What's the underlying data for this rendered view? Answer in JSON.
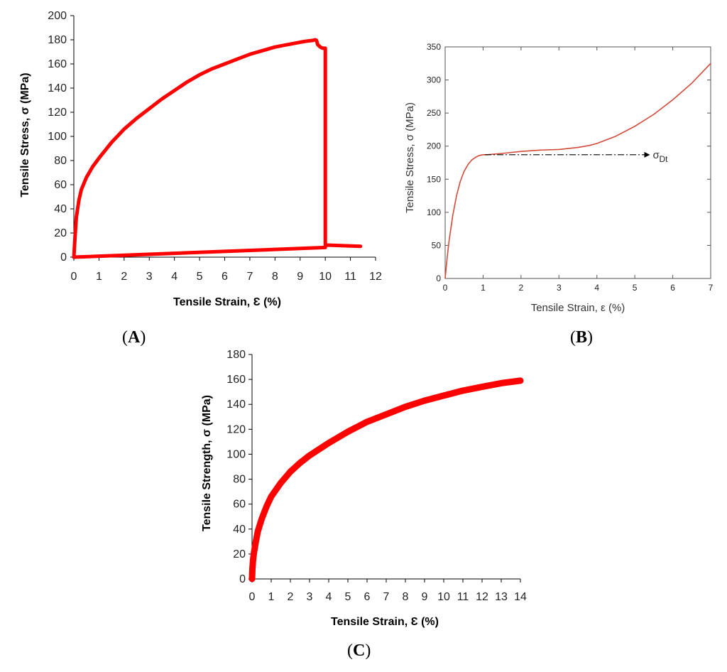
{
  "colors": {
    "curve": "#ff0000",
    "curve_b": "#d24a3a",
    "axis": "#000000",
    "frame_b": "#555555"
  },
  "chart_data": [
    {
      "panel": "(A)",
      "panel_letter": "A",
      "type": "line",
      "xlabel": "Tensile Strain, Ɛ (%)",
      "ylabel": "Tensile Stress, σ (MPa)",
      "xlim": [
        0,
        12
      ],
      "ylim": [
        0,
        200
      ],
      "xticks": [
        0,
        1,
        2,
        3,
        4,
        5,
        6,
        7,
        8,
        9,
        10,
        11,
        12
      ],
      "yticks": [
        0,
        20,
        40,
        60,
        80,
        100,
        120,
        140,
        160,
        180,
        200
      ],
      "series": [
        {
          "name": "loading",
          "x": [
            0,
            0.05,
            0.1,
            0.2,
            0.3,
            0.5,
            0.75,
            1.0,
            1.5,
            2.0,
            2.5,
            3.0,
            3.5,
            4.0,
            4.5,
            5.0,
            5.5,
            6.0,
            6.5,
            7.0,
            7.5,
            8.0,
            8.5,
            9.0,
            9.3,
            9.5,
            9.6,
            9.65,
            9.7,
            9.8,
            9.9,
            10.0,
            10.0,
            10.05,
            11.4
          ],
          "y": [
            0,
            18,
            33,
            47,
            56,
            66,
            75,
            82,
            95,
            106,
            115,
            123,
            131,
            138,
            145,
            151,
            156,
            160,
            164,
            168,
            171,
            174,
            176,
            178,
            179,
            179.5,
            180,
            179.5,
            176,
            174,
            173,
            173,
            10,
            10,
            9
          ]
        },
        {
          "name": "baseline",
          "x": [
            0,
            10.0
          ],
          "y": [
            0,
            8
          ]
        }
      ]
    },
    {
      "panel": "(B)",
      "panel_letter": "B",
      "type": "line",
      "xlabel": "Tensile Strain, ε (%)",
      "ylabel": "Tensile Stress, σ (MPa)",
      "xlim": [
        0,
        7
      ],
      "ylim": [
        0,
        350
      ],
      "xticks": [
        0,
        1,
        2,
        3,
        4,
        5,
        6,
        7
      ],
      "yticks": [
        0,
        50,
        100,
        150,
        200,
        250,
        300,
        350
      ],
      "annotation": {
        "symbol": "σ",
        "subscript": "Dt",
        "x_start": 1.05,
        "x_end": 5.4,
        "y": 187
      },
      "series": [
        {
          "name": "stress-strain",
          "x": [
            0,
            0.05,
            0.1,
            0.2,
            0.3,
            0.4,
            0.5,
            0.6,
            0.7,
            0.8,
            0.9,
            1.0,
            1.1,
            1.5,
            2.0,
            2.5,
            3.0,
            3.5,
            3.8,
            4.0,
            4.5,
            5.0,
            5.5,
            6.0,
            6.5,
            7.0
          ],
          "y": [
            0,
            30,
            55,
            95,
            125,
            147,
            162,
            172,
            179,
            183,
            186,
            187,
            187,
            189,
            192,
            194,
            195,
            198,
            201,
            204,
            215,
            230,
            248,
            270,
            295,
            325
          ]
        }
      ]
    },
    {
      "panel": "(C)",
      "panel_letter": "C",
      "type": "line",
      "xlabel": "Tensile Strain, Ɛ (%)",
      "ylabel": "Tensile Strength, σ (MPa)",
      "xlim": [
        0,
        14
      ],
      "ylim": [
        0,
        180
      ],
      "xticks": [
        0,
        1,
        2,
        3,
        4,
        5,
        6,
        7,
        8,
        9,
        10,
        11,
        12,
        13,
        14
      ],
      "yticks": [
        0,
        20,
        40,
        60,
        80,
        100,
        120,
        140,
        160,
        180
      ],
      "series": [
        {
          "name": "stress-strain",
          "x": [
            0,
            0.02,
            0.05,
            0.1,
            0.2,
            0.3,
            0.5,
            0.75,
            1.0,
            1.5,
            2.0,
            2.5,
            3.0,
            3.5,
            4.0,
            5.0,
            6.0,
            7.0,
            8.0,
            9.0,
            10.0,
            11.0,
            12.0,
            13.0,
            14.0
          ],
          "y": [
            0,
            8,
            15,
            21,
            30,
            38,
            48,
            58,
            66,
            77,
            86,
            93,
            99,
            104,
            109,
            118,
            126,
            132,
            138,
            143,
            147,
            151,
            154,
            157,
            159
          ]
        }
      ]
    }
  ]
}
